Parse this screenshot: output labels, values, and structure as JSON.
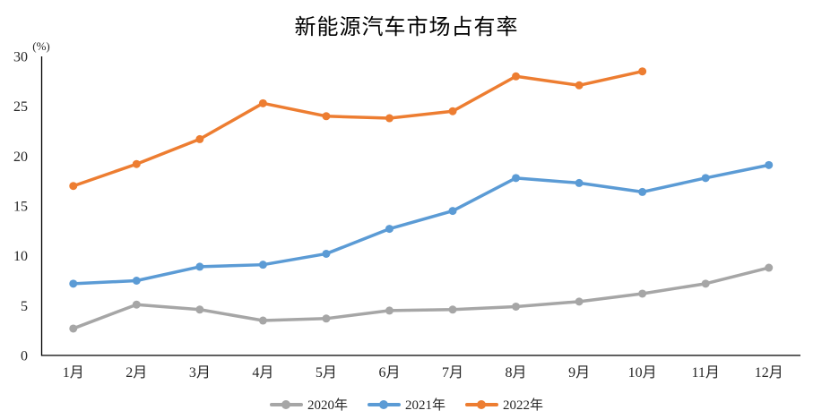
{
  "chart_data": {
    "type": "line",
    "title": "新能源汽车市场占有率",
    "y_axis_unit_label": "(%)",
    "xlabel": "",
    "ylabel": "(%)",
    "categories": [
      "1月",
      "2月",
      "3月",
      "4月",
      "5月",
      "6月",
      "7月",
      "8月",
      "9月",
      "10月",
      "11月",
      "12月"
    ],
    "series": [
      {
        "name": "2020年",
        "color": "#A6A6A6",
        "values": [
          2.7,
          5.1,
          4.6,
          3.5,
          3.7,
          4.5,
          4.6,
          4.9,
          5.4,
          6.2,
          7.2,
          8.8
        ]
      },
      {
        "name": "2021年",
        "color": "#5B9BD5",
        "values": [
          7.2,
          7.5,
          8.9,
          9.1,
          10.2,
          12.7,
          14.5,
          17.8,
          17.3,
          16.4,
          17.8,
          19.1
        ]
      },
      {
        "name": "2022年",
        "color": "#ED7D31",
        "values": [
          17.0,
          19.2,
          21.7,
          25.3,
          24.0,
          23.8,
          24.5,
          28.0,
          27.1,
          28.5
        ]
      }
    ],
    "ylim": [
      0,
      30
    ],
    "y_tick_step": 5,
    "y_tick_labels": [
      "0",
      "5",
      "10",
      "15",
      "20",
      "25",
      "30"
    ],
    "grid": false,
    "legend_position": "bottom",
    "axis_color": "#000000",
    "tick_label_color": "#262626",
    "background_color": "#FFFFFF"
  }
}
